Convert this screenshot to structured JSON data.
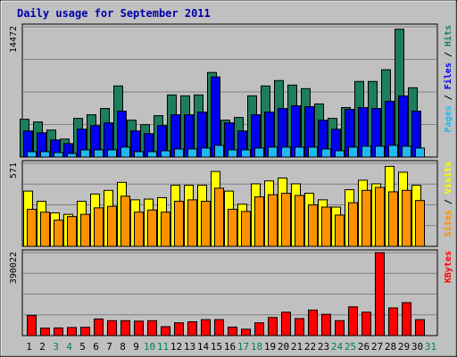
{
  "chart_data": {
    "type": "bar",
    "title": "Daily usage for September 2011",
    "x": [
      "1",
      "2",
      "3",
      "4",
      "5",
      "6",
      "7",
      "8",
      "9",
      "10",
      "11",
      "12",
      "13",
      "14",
      "15",
      "16",
      "17",
      "18",
      "19",
      "20",
      "21",
      "22",
      "23",
      "24",
      "25",
      "26",
      "27",
      "28",
      "29",
      "30",
      "31"
    ],
    "weekend_days": [
      3,
      4,
      10,
      11,
      17,
      18,
      24,
      25,
      31
    ],
    "panels": [
      {
        "axis_max_label": "14472",
        "ymax": 14472,
        "series": [
          {
            "name": "Hits",
            "color": "#1e7e5c",
            "values": [
              4200,
              3900,
              3000,
              2000,
              4300,
              4700,
              5400,
              7900,
              4100,
              3600,
              4600,
              6900,
              6800,
              6900,
              9400,
              4100,
              4400,
              6800,
              7900,
              8500,
              8000,
              7600,
              5900,
              4300,
              5500,
              8400,
              8400,
              9700,
              14200,
              7700,
              0
            ]
          },
          {
            "name": "Files",
            "color": "#0000ee",
            "values": [
              2900,
              2700,
              1900,
              1500,
              3100,
              3500,
              3800,
              5100,
              2900,
              2600,
              3500,
              4700,
              4700,
              5000,
              8900,
              3800,
              2900,
              4700,
              5000,
              5400,
              5700,
              5600,
              4100,
              3100,
              5300,
              5500,
              5400,
              6200,
              6800,
              5100,
              0
            ]
          },
          {
            "name": "Pages",
            "color": "#22b8f0",
            "values": [
              600,
              600,
              500,
              400,
              800,
              800,
              800,
              1100,
              600,
              600,
              700,
              900,
              900,
              1000,
              1300,
              800,
              800,
              1000,
              1100,
              1100,
              1100,
              1100,
              900,
              700,
              1100,
              1200,
              1200,
              1300,
              1200,
              1000,
              0
            ]
          }
        ]
      },
      {
        "axis_max_label": "571",
        "ymax": 571,
        "series": [
          {
            "name": "Visits",
            "color": "#ffff00",
            "values": [
              380,
              310,
              230,
              220,
              310,
              360,
              385,
              440,
              320,
              325,
              335,
              420,
              420,
              420,
              515,
              380,
              290,
              430,
              450,
              470,
              430,
              365,
              320,
              270,
              390,
              455,
              430,
              550,
              510,
              420,
              0
            ]
          },
          {
            "name": "Sites",
            "color": "#ff9000",
            "values": [
              255,
              235,
              180,
              205,
              220,
              265,
              275,
              345,
              235,
              250,
              235,
              310,
              320,
              310,
              400,
              255,
              240,
              340,
              355,
              365,
              350,
              285,
              270,
              215,
              300,
              385,
              405,
              375,
              385,
              315,
              0
            ]
          }
        ]
      },
      {
        "axis_max_label": "390022",
        "ymax": 390022,
        "series": [
          {
            "name": "KBytes",
            "color": "#ff0000",
            "values": [
              95000,
              35000,
              36000,
              38000,
              39000,
              78000,
              70000,
              70000,
              68000,
              70000,
              42000,
              60000,
              65000,
              75000,
              75000,
              40000,
              30000,
              60000,
              85000,
              110000,
              80000,
              120000,
              100000,
              70000,
              135000,
              110000,
              390022,
              130000,
              155000,
              75000,
              0
            ]
          }
        ]
      }
    ]
  }
}
